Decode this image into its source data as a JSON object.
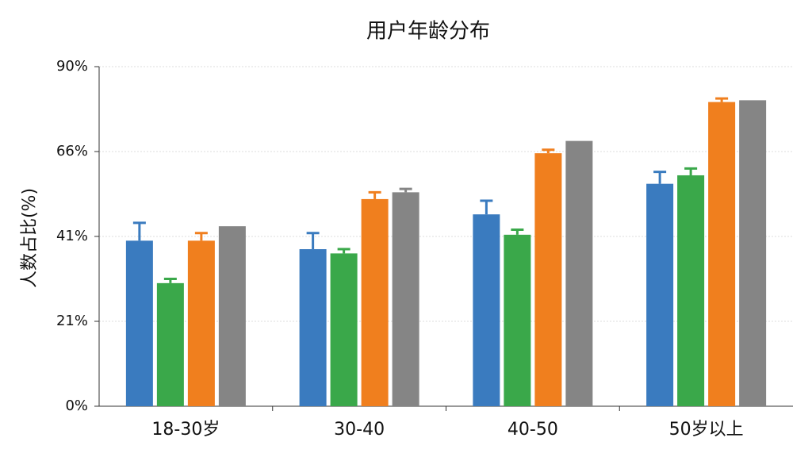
{
  "chart_data": {
    "type": "bar",
    "title": "用户年龄分布",
    "y_label": "人数占比(%)",
    "categories": [
      "18-30岁",
      "30-40",
      "40-50",
      "50岁以上"
    ],
    "series": [
      {
        "color": "#3a7bbf",
        "values": [
          40,
          38,
          47.5,
          56.5
        ],
        "errors": [
          5,
          4,
          4,
          3.5
        ]
      },
      {
        "color": "#3aa84a",
        "values": [
          30,
          37,
          41.5,
          59
        ],
        "errors": [
          1,
          1,
          1.5,
          2
        ]
      },
      {
        "color": "#f07f1e",
        "values": [
          40,
          52,
          65.5,
          80
        ],
        "errors": [
          2,
          2,
          1,
          1
        ]
      },
      {
        "color": "#858585",
        "values": [
          44,
          54,
          69,
          80.5
        ],
        "errors": [
          null,
          1,
          null,
          null
        ]
      }
    ],
    "ylim": [
      0,
      90
    ],
    "yticks": [
      {
        "value": 0,
        "label": "0%"
      },
      {
        "value": 21,
        "label": "21%"
      },
      {
        "value": 41,
        "label": "41%"
      },
      {
        "value": 66,
        "label": "66%"
      },
      {
        "value": 90,
        "label": "90%"
      }
    ],
    "grid": true
  }
}
